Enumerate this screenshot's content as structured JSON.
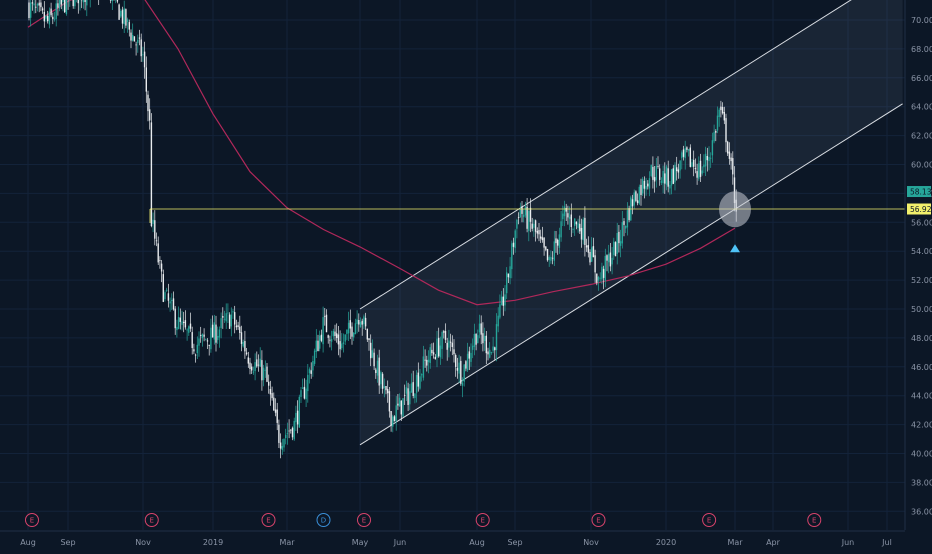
{
  "chart_data": {
    "type": "candlestick",
    "y_axis": {
      "ticks": [
        "70.00",
        "68.00",
        "66.00",
        "64.00",
        "62.00",
        "60.00",
        "58.00",
        "56.00",
        "54.00",
        "52.00",
        "50.00",
        "48.00",
        "46.00",
        "44.00",
        "42.00",
        "40.00",
        "38.00",
        "36.00"
      ],
      "ylim": [
        35,
        72
      ]
    },
    "x_axis": {
      "ticks": [
        {
          "label": "Aug",
          "t": 0
        },
        {
          "label": "Sep",
          "t": 1
        },
        {
          "label": "Nov",
          "t": 3
        },
        {
          "label": "2019",
          "t": 5
        },
        {
          "label": "Mar",
          "t": 7
        },
        {
          "label": "May",
          "t": 9
        },
        {
          "label": "Jun",
          "t": 10
        },
        {
          "label": "Aug",
          "t": 12
        },
        {
          "label": "Sep",
          "t": 13
        },
        {
          "label": "Nov",
          "t": 15
        },
        {
          "label": "2020",
          "t": 17
        },
        {
          "label": "Mar",
          "t": 19
        },
        {
          "label": "Apr",
          "t": 20
        },
        {
          "label": "Jun",
          "t": 22
        },
        {
          "label": "Jul",
          "t": 23
        }
      ]
    },
    "price_path": [
      {
        "t": 0.0,
        "v": 71.0
      },
      {
        "t": 0.5,
        "v": 69.8
      },
      {
        "t": 1.0,
        "v": 71.5
      },
      {
        "t": 1.5,
        "v": 72.0
      },
      {
        "t": 2.0,
        "v": 72.5
      },
      {
        "t": 2.5,
        "v": 70.0
      },
      {
        "t": 3.0,
        "v": 67.5
      },
      {
        "t": 3.2,
        "v": 62.5
      },
      {
        "t": 3.22,
        "v": 56.5
      },
      {
        "t": 3.6,
        "v": 51.0
      },
      {
        "t": 4.0,
        "v": 49.0
      },
      {
        "t": 4.5,
        "v": 47.5
      },
      {
        "t": 5.0,
        "v": 48.2
      },
      {
        "t": 5.5,
        "v": 49.5
      },
      {
        "t": 6.0,
        "v": 46.5
      },
      {
        "t": 6.4,
        "v": 45.5
      },
      {
        "t": 6.8,
        "v": 41.0
      },
      {
        "t": 7.2,
        "v": 42.0
      },
      {
        "t": 7.6,
        "v": 45.5
      },
      {
        "t": 8.0,
        "v": 49.0
      },
      {
        "t": 8.5,
        "v": 47.5
      },
      {
        "t": 9.0,
        "v": 49.8
      },
      {
        "t": 9.4,
        "v": 46.0
      },
      {
        "t": 9.8,
        "v": 42.5
      },
      {
        "t": 10.2,
        "v": 44.0
      },
      {
        "t": 10.7,
        "v": 46.5
      },
      {
        "t": 11.2,
        "v": 48.0
      },
      {
        "t": 11.6,
        "v": 45.5
      },
      {
        "t": 12.0,
        "v": 48.5
      },
      {
        "t": 12.4,
        "v": 47.0
      },
      {
        "t": 12.8,
        "v": 52.0
      },
      {
        "t": 13.1,
        "v": 57.0
      },
      {
        "t": 13.5,
        "v": 55.5
      },
      {
        "t": 13.9,
        "v": 53.0
      },
      {
        "t": 14.3,
        "v": 56.5
      },
      {
        "t": 14.8,
        "v": 55.5
      },
      {
        "t": 15.2,
        "v": 52.0
      },
      {
        "t": 15.7,
        "v": 54.5
      },
      {
        "t": 16.1,
        "v": 57.5
      },
      {
        "t": 16.6,
        "v": 59.5
      },
      {
        "t": 17.1,
        "v": 59.0
      },
      {
        "t": 17.6,
        "v": 60.5
      },
      {
        "t": 18.0,
        "v": 59.5
      },
      {
        "t": 18.3,
        "v": 61.0
      },
      {
        "t": 18.55,
        "v": 63.8
      },
      {
        "t": 18.75,
        "v": 62.0
      },
      {
        "t": 18.95,
        "v": 58.5
      },
      {
        "t": 19.05,
        "v": 56.9
      }
    ],
    "moving_average": [
      {
        "t": 0.0,
        "v": 69.5
      },
      {
        "t": 1.0,
        "v": 71.3
      },
      {
        "t": 2.0,
        "v": 72.3
      },
      {
        "t": 3.0,
        "v": 71.6
      },
      {
        "t": 4.0,
        "v": 68.0
      },
      {
        "t": 5.0,
        "v": 63.5
      },
      {
        "t": 6.0,
        "v": 59.5
      },
      {
        "t": 7.0,
        "v": 57.0
      },
      {
        "t": 8.0,
        "v": 55.5
      },
      {
        "t": 9.0,
        "v": 54.3
      },
      {
        "t": 10.0,
        "v": 52.8
      },
      {
        "t": 11.0,
        "v": 51.3
      },
      {
        "t": 12.0,
        "v": 50.3
      },
      {
        "t": 13.0,
        "v": 50.6
      },
      {
        "t": 14.0,
        "v": 51.2
      },
      {
        "t": 15.0,
        "v": 51.7
      },
      {
        "t": 16.0,
        "v": 52.3
      },
      {
        "t": 17.0,
        "v": 53.1
      },
      {
        "t": 18.0,
        "v": 54.2
      },
      {
        "t": 19.0,
        "v": 55.6
      }
    ],
    "channel": {
      "upper": [
        {
          "t": 9.0,
          "v": 50.0
        },
        {
          "t": 22.2,
          "v": 71.6
        }
      ],
      "lower": [
        {
          "t": 9.0,
          "v": 40.6
        },
        {
          "t": 23.4,
          "v": 64.2
        }
      ],
      "fill_to_t": 23.4
    },
    "horizontal_line": {
      "t_start": 3.2,
      "v": 56.92
    },
    "price_tags": [
      {
        "label": "58.13",
        "v": 58.13,
        "color": "#26a69a"
      },
      {
        "label": "56.92",
        "v": 56.92,
        "color": "#f2f06c"
      }
    ],
    "highlight": {
      "t": 19.0,
      "v": 56.9
    },
    "marker": {
      "t": 19.0,
      "v": 54.2
    },
    "events": [
      {
        "label": "E",
        "t": 0.1,
        "color": "#d7436b"
      },
      {
        "label": "E",
        "t": 3.25,
        "color": "#d7436b"
      },
      {
        "label": "E",
        "t": 6.5,
        "color": "#d7436b"
      },
      {
        "label": "D",
        "t": 8.0,
        "color": "#3a8fd8"
      },
      {
        "label": "E",
        "t": 9.1,
        "color": "#d7436b"
      },
      {
        "label": "E",
        "t": 12.15,
        "color": "#d7436b"
      },
      {
        "label": "E",
        "t": 15.2,
        "color": "#d7436b"
      },
      {
        "label": "E",
        "t": 18.25,
        "color": "#d7436b"
      },
      {
        "label": "E",
        "t": 21.1,
        "color": "#d7436b"
      }
    ],
    "colors": {
      "background": "#0c1726",
      "up": "#26a69a",
      "down": "#e9ecef",
      "ma": "#b0285a",
      "channel": "#d9dde3",
      "level": "#f2f06c",
      "marker": "#4fc3f7"
    }
  }
}
